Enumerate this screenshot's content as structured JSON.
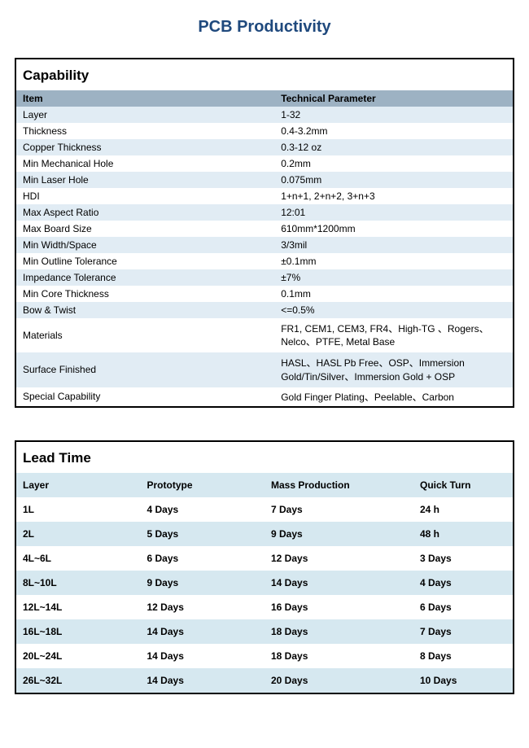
{
  "page_title": "PCB Productivity",
  "colors": {
    "title_color": "#1f497d",
    "border_color": "#000000",
    "header_row_bg": "#9db2c3",
    "stripe_even_bg": "#e1ecf4",
    "stripe_odd_bg": "#ffffff",
    "leadtime_header_bg": "#d6e8f0",
    "text_color": "#000000"
  },
  "capability": {
    "heading": "Capability",
    "columns": [
      "Item",
      "Technical Parameter"
    ],
    "rows": [
      {
        "item": "Layer",
        "value": "1-32"
      },
      {
        "item": "Thickness",
        "value": "0.4-3.2mm"
      },
      {
        "item": "Copper Thickness",
        "value": "0.3-12 oz"
      },
      {
        "item": "Min Mechanical Hole",
        "value": "0.2mm"
      },
      {
        "item": "Min Laser Hole",
        "value": "0.075mm"
      },
      {
        "item": "HDI",
        "value": "1+n+1, 2+n+2, 3+n+3"
      },
      {
        "item": "Max Aspect Ratio",
        "value": "12:01"
      },
      {
        "item": "Max Board Size",
        "value": "610mm*1200mm"
      },
      {
        "item": "Min Width/Space",
        "value": "3/3mil"
      },
      {
        "item": "Min Outline Tolerance",
        "value": "±0.1mm"
      },
      {
        "item": "Impedance Tolerance",
        "value": "±7%"
      },
      {
        "item": "Min Core Thickness",
        "value": "0.1mm"
      },
      {
        "item": "Bow & Twist",
        "value": "<=0.5%"
      },
      {
        "item": "Materials",
        "value": "FR1, CEM1, CEM3, FR4、High-TG  、Rogers、Nelco、PTFE, Metal Base",
        "multiline": true
      },
      {
        "item": "Surface Finished",
        "value": "HASL、HASL Pb Free、OSP、Immersion Gold/Tin/Silver、Immersion Gold + OSP",
        "multiline": true
      },
      {
        "item": "Special Capability",
        "value": "Gold Finger Plating、Peelable、Carbon"
      }
    ]
  },
  "lead_time": {
    "heading": "Lead Time",
    "columns": [
      "Layer",
      "Prototype",
      "Mass Production",
      "Quick Turn"
    ],
    "column_widths": [
      "25%",
      "25%",
      "30%",
      "20%"
    ],
    "rows": [
      {
        "layer": "1L",
        "prototype": "4 Days",
        "mass": "7 Days",
        "quick": "24 h"
      },
      {
        "layer": "2L",
        "prototype": "5 Days",
        "mass": "9 Days",
        "quick": "48 h"
      },
      {
        "layer": "4L~6L",
        "prototype": "6 Days",
        "mass": "12 Days",
        "quick": "3 Days"
      },
      {
        "layer": "8L~10L",
        "prototype": "9 Days",
        "mass": "14 Days",
        "quick": "4 Days"
      },
      {
        "layer": "12L~14L",
        "prototype": "12 Days",
        "mass": "16 Days",
        "quick": "6 Days"
      },
      {
        "layer": "16L~18L",
        "prototype": "14 Days",
        "mass": "18 Days",
        "quick": "7 Days"
      },
      {
        "layer": "20L~24L",
        "prototype": "14 Days",
        "mass": "18 Days",
        "quick": "8 Days"
      },
      {
        "layer": "26L~32L",
        "prototype": "14 Days",
        "mass": "20 Days",
        "quick": "10 Days"
      }
    ]
  }
}
